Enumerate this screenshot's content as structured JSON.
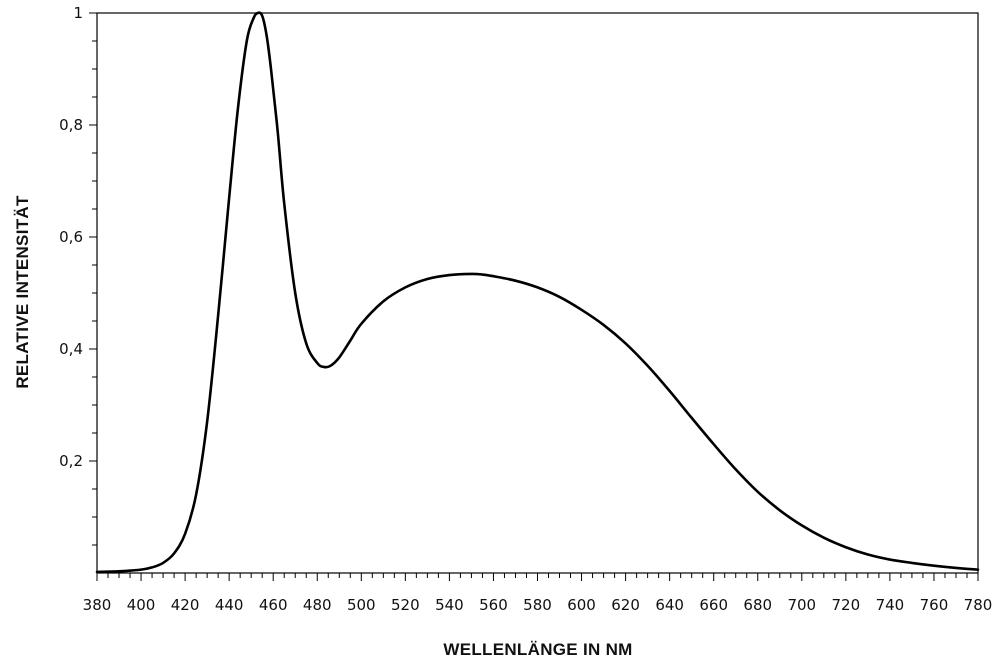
{
  "chart_data": {
    "type": "line",
    "title": "",
    "xlabel": "WELLENLÄNGE IN NM",
    "ylabel": "RELATIVE INTENSITÄT",
    "xlim": [
      380,
      780
    ],
    "ylim": [
      0,
      1
    ],
    "grid": false,
    "x_ticks": [
      380,
      400,
      420,
      440,
      460,
      480,
      500,
      520,
      540,
      560,
      580,
      600,
      620,
      640,
      660,
      680,
      700,
      720,
      740,
      760,
      780
    ],
    "x_tick_labels": [
      "380",
      "400",
      "420",
      "440",
      "460",
      "480",
      "500",
      "520",
      "540",
      "560",
      "580",
      "600",
      "620",
      "640",
      "660",
      "680",
      "700",
      "720",
      "740",
      "760",
      "780"
    ],
    "x_minor_step": 5,
    "y_ticks": [
      0.2,
      0.4,
      0.6,
      0.8,
      1
    ],
    "y_tick_labels": [
      "0,2",
      "0,4",
      "0,6",
      "0,8",
      "1"
    ],
    "y_minor_step": 0.05,
    "series": [
      {
        "x": [
          380,
          390,
          400,
          405,
          410,
          415,
          420,
          425,
          430,
          435,
          440,
          444,
          448,
          451,
          453,
          455,
          457,
          459,
          462,
          465,
          470,
          475,
          480,
          483,
          486,
          490,
          495,
          500,
          510,
          520,
          530,
          540,
          550,
          555,
          560,
          570,
          580,
          590,
          600,
          610,
          620,
          630,
          640,
          650,
          660,
          670,
          680,
          690,
          700,
          710,
          720,
          730,
          740,
          750,
          760,
          770,
          780
        ],
        "y": [
          0.002,
          0.003,
          0.006,
          0.01,
          0.018,
          0.035,
          0.07,
          0.14,
          0.27,
          0.46,
          0.67,
          0.83,
          0.95,
          0.99,
          1.0,
          0.995,
          0.96,
          0.9,
          0.79,
          0.66,
          0.5,
          0.41,
          0.375,
          0.368,
          0.37,
          0.385,
          0.415,
          0.445,
          0.485,
          0.51,
          0.525,
          0.532,
          0.534,
          0.533,
          0.53,
          0.522,
          0.51,
          0.493,
          0.47,
          0.443,
          0.41,
          0.37,
          0.325,
          0.277,
          0.23,
          0.185,
          0.145,
          0.112,
          0.085,
          0.063,
          0.046,
          0.033,
          0.024,
          0.018,
          0.013,
          0.009,
          0.006
        ]
      }
    ]
  }
}
